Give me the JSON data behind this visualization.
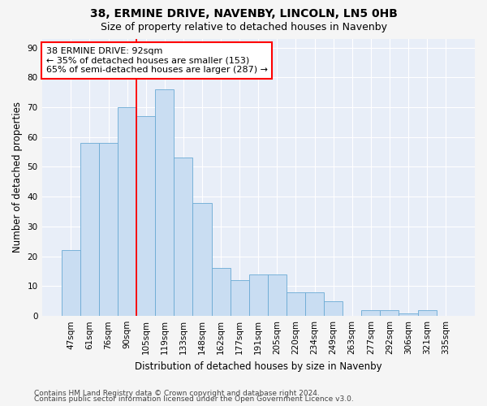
{
  "title": "38, ERMINE DRIVE, NAVENBY, LINCOLN, LN5 0HB",
  "subtitle": "Size of property relative to detached houses in Navenby",
  "xlabel": "Distribution of detached houses by size in Navenby",
  "ylabel": "Number of detached properties",
  "categories": [
    "47sqm",
    "61sqm",
    "76sqm",
    "90sqm",
    "105sqm",
    "119sqm",
    "133sqm",
    "148sqm",
    "162sqm",
    "177sqm",
    "191sqm",
    "205sqm",
    "220sqm",
    "234sqm",
    "249sqm",
    "263sqm",
    "277sqm",
    "292sqm",
    "306sqm",
    "321sqm",
    "335sqm"
  ],
  "values": [
    22,
    58,
    58,
    70,
    67,
    76,
    53,
    38,
    16,
    12,
    14,
    14,
    8,
    8,
    5,
    0,
    2,
    2,
    1,
    2,
    0
  ],
  "bar_color": "#c9ddf2",
  "bar_edge_color": "#6aaad4",
  "annotation_line1": "38 ERMINE DRIVE: 92sqm",
  "annotation_line2": "← 35% of detached houses are smaller (153)",
  "annotation_line3": "65% of semi-detached houses are larger (287) →",
  "annotation_box_color": "white",
  "annotation_box_edge": "red",
  "vline_color": "red",
  "vline_x_index": 3.5,
  "ylim": [
    0,
    93
  ],
  "yticks": [
    0,
    10,
    20,
    30,
    40,
    50,
    60,
    70,
    80,
    90
  ],
  "footer_line1": "Contains HM Land Registry data © Crown copyright and database right 2024.",
  "footer_line2": "Contains public sector information licensed under the Open Government Licence v3.0.",
  "plot_bg_color": "#e8eef8",
  "fig_bg_color": "#f5f5f5",
  "grid_color": "white",
  "title_fontsize": 10,
  "subtitle_fontsize": 9,
  "axis_label_fontsize": 8.5,
  "tick_fontsize": 7.5,
  "annotation_fontsize": 8,
  "footer_fontsize": 6.5
}
